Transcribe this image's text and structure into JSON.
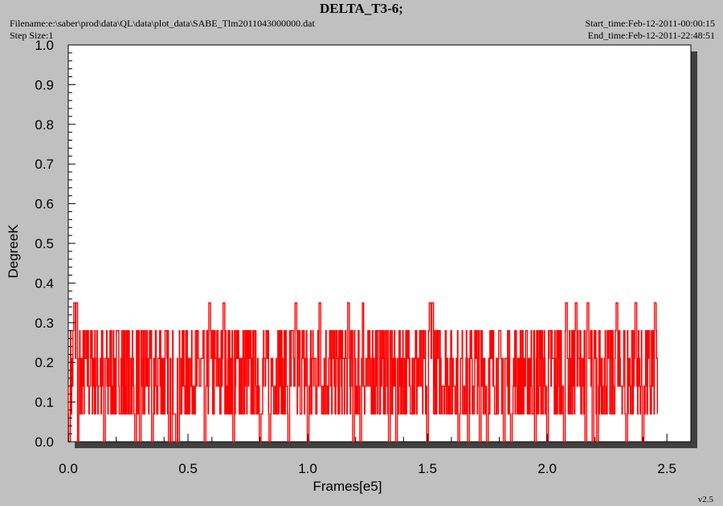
{
  "header": {
    "title": "DELTA_T3-6;",
    "filename": "Filename:e:\\saber\\prod\\data\\QL\\data\\plot_data\\SABE_Tlm2011043000000.dat",
    "step_size": "Step Size:1",
    "start_time": "Start_time:Feb-12-2011-00:00:15",
    "end_time": "End_time:Feb-12-2011-22:48:51"
  },
  "footer": {
    "version": "v2.5"
  },
  "colors": {
    "background": "#c0c0c0",
    "plot_area": "#ffffff",
    "series": "#ff0000",
    "shadow": "#404040"
  },
  "chart_data": {
    "type": "line",
    "title": "DELTA_T3-6;",
    "xlabel": "Frames[e5]",
    "ylabel": "DegreeK",
    "xlim": [
      0.0,
      2.6
    ],
    "ylim": [
      0.0,
      1.0
    ],
    "xticks": [
      "0.0",
      "0.5",
      "1.0",
      "1.5",
      "2.0",
      "2.5"
    ],
    "yticks": [
      "0.0",
      "0.1",
      "0.2",
      "0.3",
      "0.4",
      "0.5",
      "0.6",
      "0.7",
      "0.8",
      "0.9",
      "1.0"
    ],
    "grid": false,
    "series": [
      {
        "color": "#ff0000",
        "x_range": [
          0.0,
          2.46
        ],
        "levels": [
          0.0,
          0.07,
          0.14,
          0.21,
          0.28,
          0.35
        ],
        "dense_band": [
          0.07,
          0.28
        ],
        "spikes_high": [
          0.025,
          0.035,
          0.59,
          0.65,
          0.95,
          1.05,
          1.17,
          1.23,
          1.51,
          1.52,
          2.08,
          2.12,
          2.17,
          2.29,
          2.37,
          2.45
        ],
        "spikes_low": [
          0.005,
          0.04,
          0.15,
          0.28,
          0.3,
          0.35,
          0.42,
          0.43,
          0.45,
          0.46,
          0.57,
          0.59,
          0.69,
          0.8,
          0.84,
          0.92,
          1.0,
          1.19,
          1.22,
          1.34,
          1.37,
          1.5,
          1.63,
          1.67,
          1.72,
          1.75,
          1.82,
          1.85,
          1.95,
          2.0,
          2.07,
          2.16,
          2.19,
          2.21,
          2.33,
          2.37,
          2.4
        ]
      }
    ]
  }
}
